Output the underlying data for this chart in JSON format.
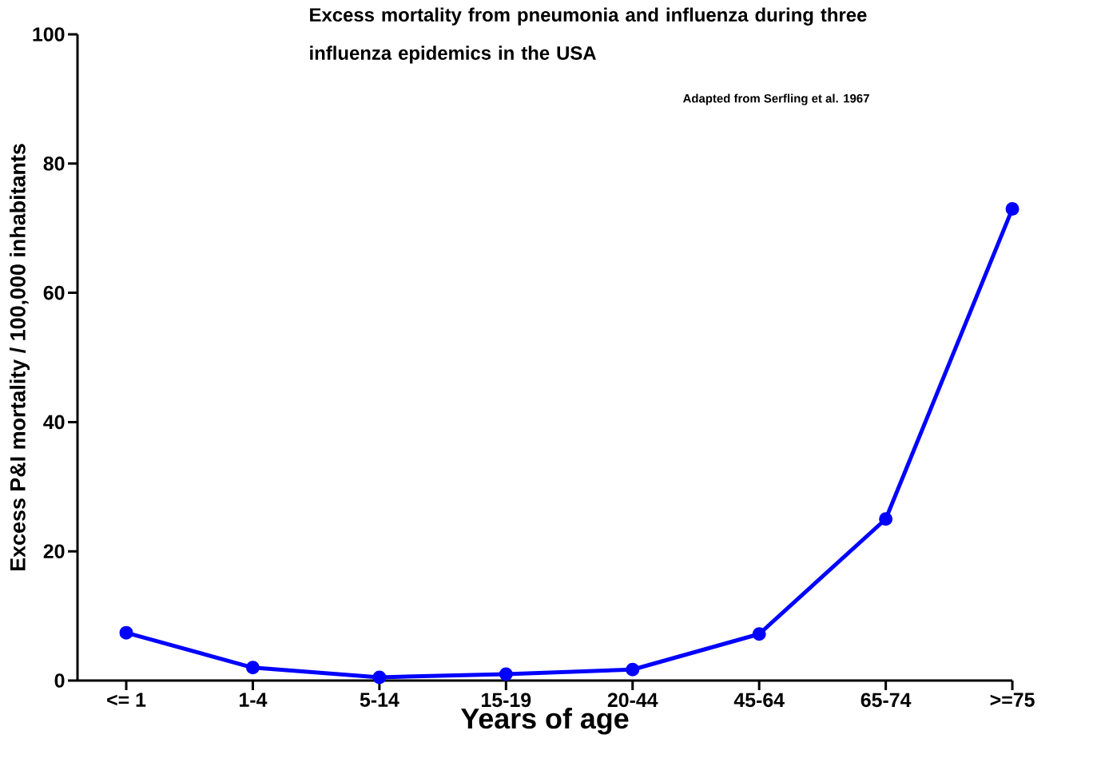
{
  "chart_data": {
    "type": "line",
    "title": "Excess mortality from pneumonia and influenza during three influenza epidemics in the USA",
    "annotations": [
      "Adapted from Serfling et al. 1967"
    ],
    "xlabel": "Years of age",
    "ylabel": "Excess P&I mortality / 100,000 inhabitants",
    "categories": [
      "<= 1",
      "1-4",
      "5-14",
      "15-19",
      "20-44",
      "45-64",
      "65-74",
      ">=75"
    ],
    "values": [
      7.4,
      2.0,
      0.5,
      1.0,
      1.7,
      7.2,
      25,
      73
    ],
    "color": "#0000ff",
    "marker": "circle",
    "line_style": "solid",
    "ylim": [
      0,
      100
    ],
    "yticks": [
      0,
      20,
      40,
      60,
      80,
      100
    ]
  }
}
